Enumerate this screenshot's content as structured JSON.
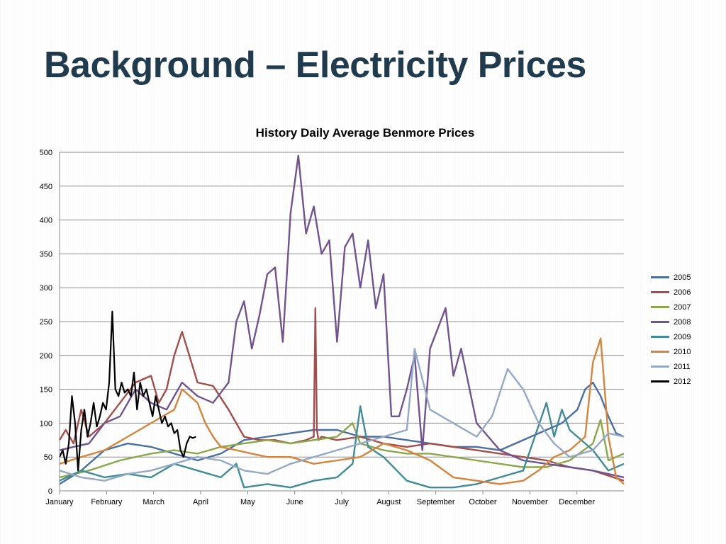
{
  "slide": {
    "title": "Background – Electricity Prices"
  },
  "chart_data": {
    "type": "line",
    "title": "History Daily Average Benmore Prices",
    "xlabel": "",
    "ylabel": "",
    "ylim": [
      0,
      500
    ],
    "y_ticks": [
      0,
      50,
      100,
      150,
      200,
      250,
      300,
      350,
      400,
      450,
      500
    ],
    "x_ticks": [
      "January",
      "February",
      "March",
      "April",
      "May",
      "June",
      "July",
      "August",
      "September",
      "October",
      "November",
      "December"
    ],
    "grid": "horizontal",
    "legend_position": "right",
    "series": [
      {
        "name": "2005",
        "color": "#4a6fa5",
        "x": [
          1,
          15,
          30,
          45,
          60,
          75,
          90,
          105,
          120,
          135,
          150,
          165,
          180,
          195,
          210,
          225,
          240,
          255,
          270,
          285,
          295,
          305,
          315,
          325,
          335,
          340,
          345,
          350,
          355,
          360,
          365
        ],
        "values": [
          10,
          30,
          60,
          70,
          65,
          55,
          45,
          55,
          75,
          80,
          85,
          90,
          90,
          80,
          80,
          75,
          70,
          65,
          65,
          60,
          70,
          80,
          90,
          100,
          120,
          150,
          160,
          140,
          110,
          85,
          80
        ]
      },
      {
        "name": "2006",
        "color": "#a64d4a",
        "x": [
          1,
          5,
          10,
          15,
          20,
          30,
          40,
          50,
          60,
          65,
          70,
          75,
          80,
          90,
          100,
          110,
          120,
          130,
          140,
          150,
          160,
          165,
          166,
          167,
          168,
          170,
          180,
          195,
          210,
          225,
          240,
          255,
          270,
          285,
          300,
          315,
          330,
          345,
          365
        ],
        "values": [
          75,
          90,
          70,
          120,
          80,
          100,
          130,
          160,
          170,
          130,
          150,
          200,
          235,
          160,
          155,
          120,
          80,
          75,
          75,
          70,
          75,
          80,
          270,
          90,
          75,
          80,
          75,
          80,
          70,
          65,
          70,
          65,
          60,
          55,
          50,
          45,
          35,
          30,
          15
        ]
      },
      {
        "name": "2007",
        "color": "#8aa84a",
        "x": [
          1,
          20,
          40,
          60,
          75,
          90,
          105,
          120,
          135,
          150,
          165,
          180,
          190,
          195,
          210,
          225,
          240,
          255,
          270,
          285,
          300,
          315,
          330,
          345,
          350,
          355,
          365
        ],
        "values": [
          20,
          30,
          45,
          55,
          60,
          55,
          65,
          70,
          75,
          70,
          75,
          80,
          100,
          70,
          60,
          55,
          55,
          50,
          45,
          40,
          35,
          35,
          45,
          70,
          105,
          45,
          55
        ]
      },
      {
        "name": "2008",
        "color": "#6f5491",
        "x": [
          1,
          10,
          20,
          30,
          40,
          50,
          60,
          70,
          80,
          90,
          100,
          110,
          115,
          120,
          125,
          130,
          135,
          140,
          145,
          150,
          155,
          160,
          165,
          170,
          175,
          180,
          185,
          190,
          195,
          200,
          205,
          210,
          215,
          220,
          225,
          230,
          235,
          240,
          245,
          250,
          255,
          260,
          270,
          285,
          300,
          315,
          330,
          345,
          365
        ],
        "values": [
          60,
          65,
          70,
          100,
          110,
          150,
          130,
          120,
          160,
          140,
          130,
          160,
          250,
          280,
          210,
          260,
          320,
          330,
          220,
          410,
          495,
          380,
          420,
          350,
          370,
          220,
          360,
          380,
          300,
          370,
          270,
          320,
          110,
          110,
          150,
          200,
          60,
          210,
          240,
          270,
          170,
          210,
          100,
          60,
          45,
          40,
          35,
          30,
          20
        ]
      },
      {
        "name": "2009",
        "color": "#3f8c96",
        "x": [
          1,
          15,
          30,
          45,
          60,
          75,
          90,
          105,
          115,
          120,
          135,
          150,
          165,
          180,
          190,
          195,
          200,
          210,
          225,
          240,
          255,
          270,
          285,
          300,
          315,
          320,
          325,
          330,
          345,
          355,
          365
        ],
        "values": [
          15,
          30,
          20,
          25,
          20,
          40,
          30,
          20,
          40,
          5,
          10,
          5,
          15,
          20,
          40,
          125,
          65,
          50,
          15,
          5,
          5,
          10,
          20,
          30,
          130,
          80,
          120,
          90,
          60,
          30,
          40
        ]
      },
      {
        "name": "2010",
        "color": "#d6843a",
        "x": [
          1,
          15,
          30,
          45,
          60,
          75,
          80,
          90,
          95,
          100,
          105,
          115,
          125,
          135,
          150,
          165,
          180,
          195,
          210,
          225,
          240,
          255,
          270,
          285,
          300,
          310,
          320,
          330,
          340,
          345,
          350,
          355,
          360,
          365
        ],
        "values": [
          40,
          50,
          60,
          80,
          100,
          120,
          150,
          130,
          100,
          80,
          65,
          60,
          55,
          50,
          50,
          40,
          45,
          50,
          70,
          60,
          45,
          20,
          15,
          10,
          15,
          30,
          50,
          60,
          80,
          190,
          225,
          80,
          20,
          10
        ]
      },
      {
        "name": "2011",
        "color": "#94a9c7",
        "x": [
          1,
          15,
          30,
          45,
          60,
          75,
          90,
          105,
          120,
          135,
          150,
          165,
          180,
          195,
          210,
          225,
          230,
          240,
          255,
          270,
          280,
          290,
          300,
          310,
          320,
          330,
          345,
          355,
          365
        ],
        "values": [
          30,
          20,
          15,
          25,
          30,
          40,
          50,
          45,
          30,
          25,
          40,
          50,
          60,
          70,
          80,
          90,
          210,
          120,
          100,
          80,
          110,
          180,
          150,
          100,
          70,
          50,
          60,
          85,
          80
        ]
      },
      {
        "name": "2012",
        "color": "#000000",
        "x": [
          1,
          3,
          5,
          7,
          9,
          11,
          13,
          15,
          17,
          19,
          21,
          23,
          25,
          27,
          29,
          31,
          33,
          35,
          37,
          39,
          41,
          43,
          45,
          47,
          49,
          51,
          53,
          55,
          57,
          59,
          61,
          63,
          65,
          67,
          69,
          71,
          73,
          75,
          77,
          79,
          81,
          83,
          85,
          87,
          89
        ],
        "values": [
          50,
          60,
          40,
          70,
          140,
          100,
          30,
          90,
          120,
          80,
          100,
          130,
          95,
          110,
          130,
          120,
          160,
          265,
          150,
          140,
          160,
          145,
          150,
          140,
          175,
          120,
          160,
          140,
          150,
          130,
          110,
          140,
          120,
          100,
          110,
          95,
          100,
          85,
          90,
          60,
          50,
          70,
          80,
          78,
          80
        ]
      }
    ]
  }
}
